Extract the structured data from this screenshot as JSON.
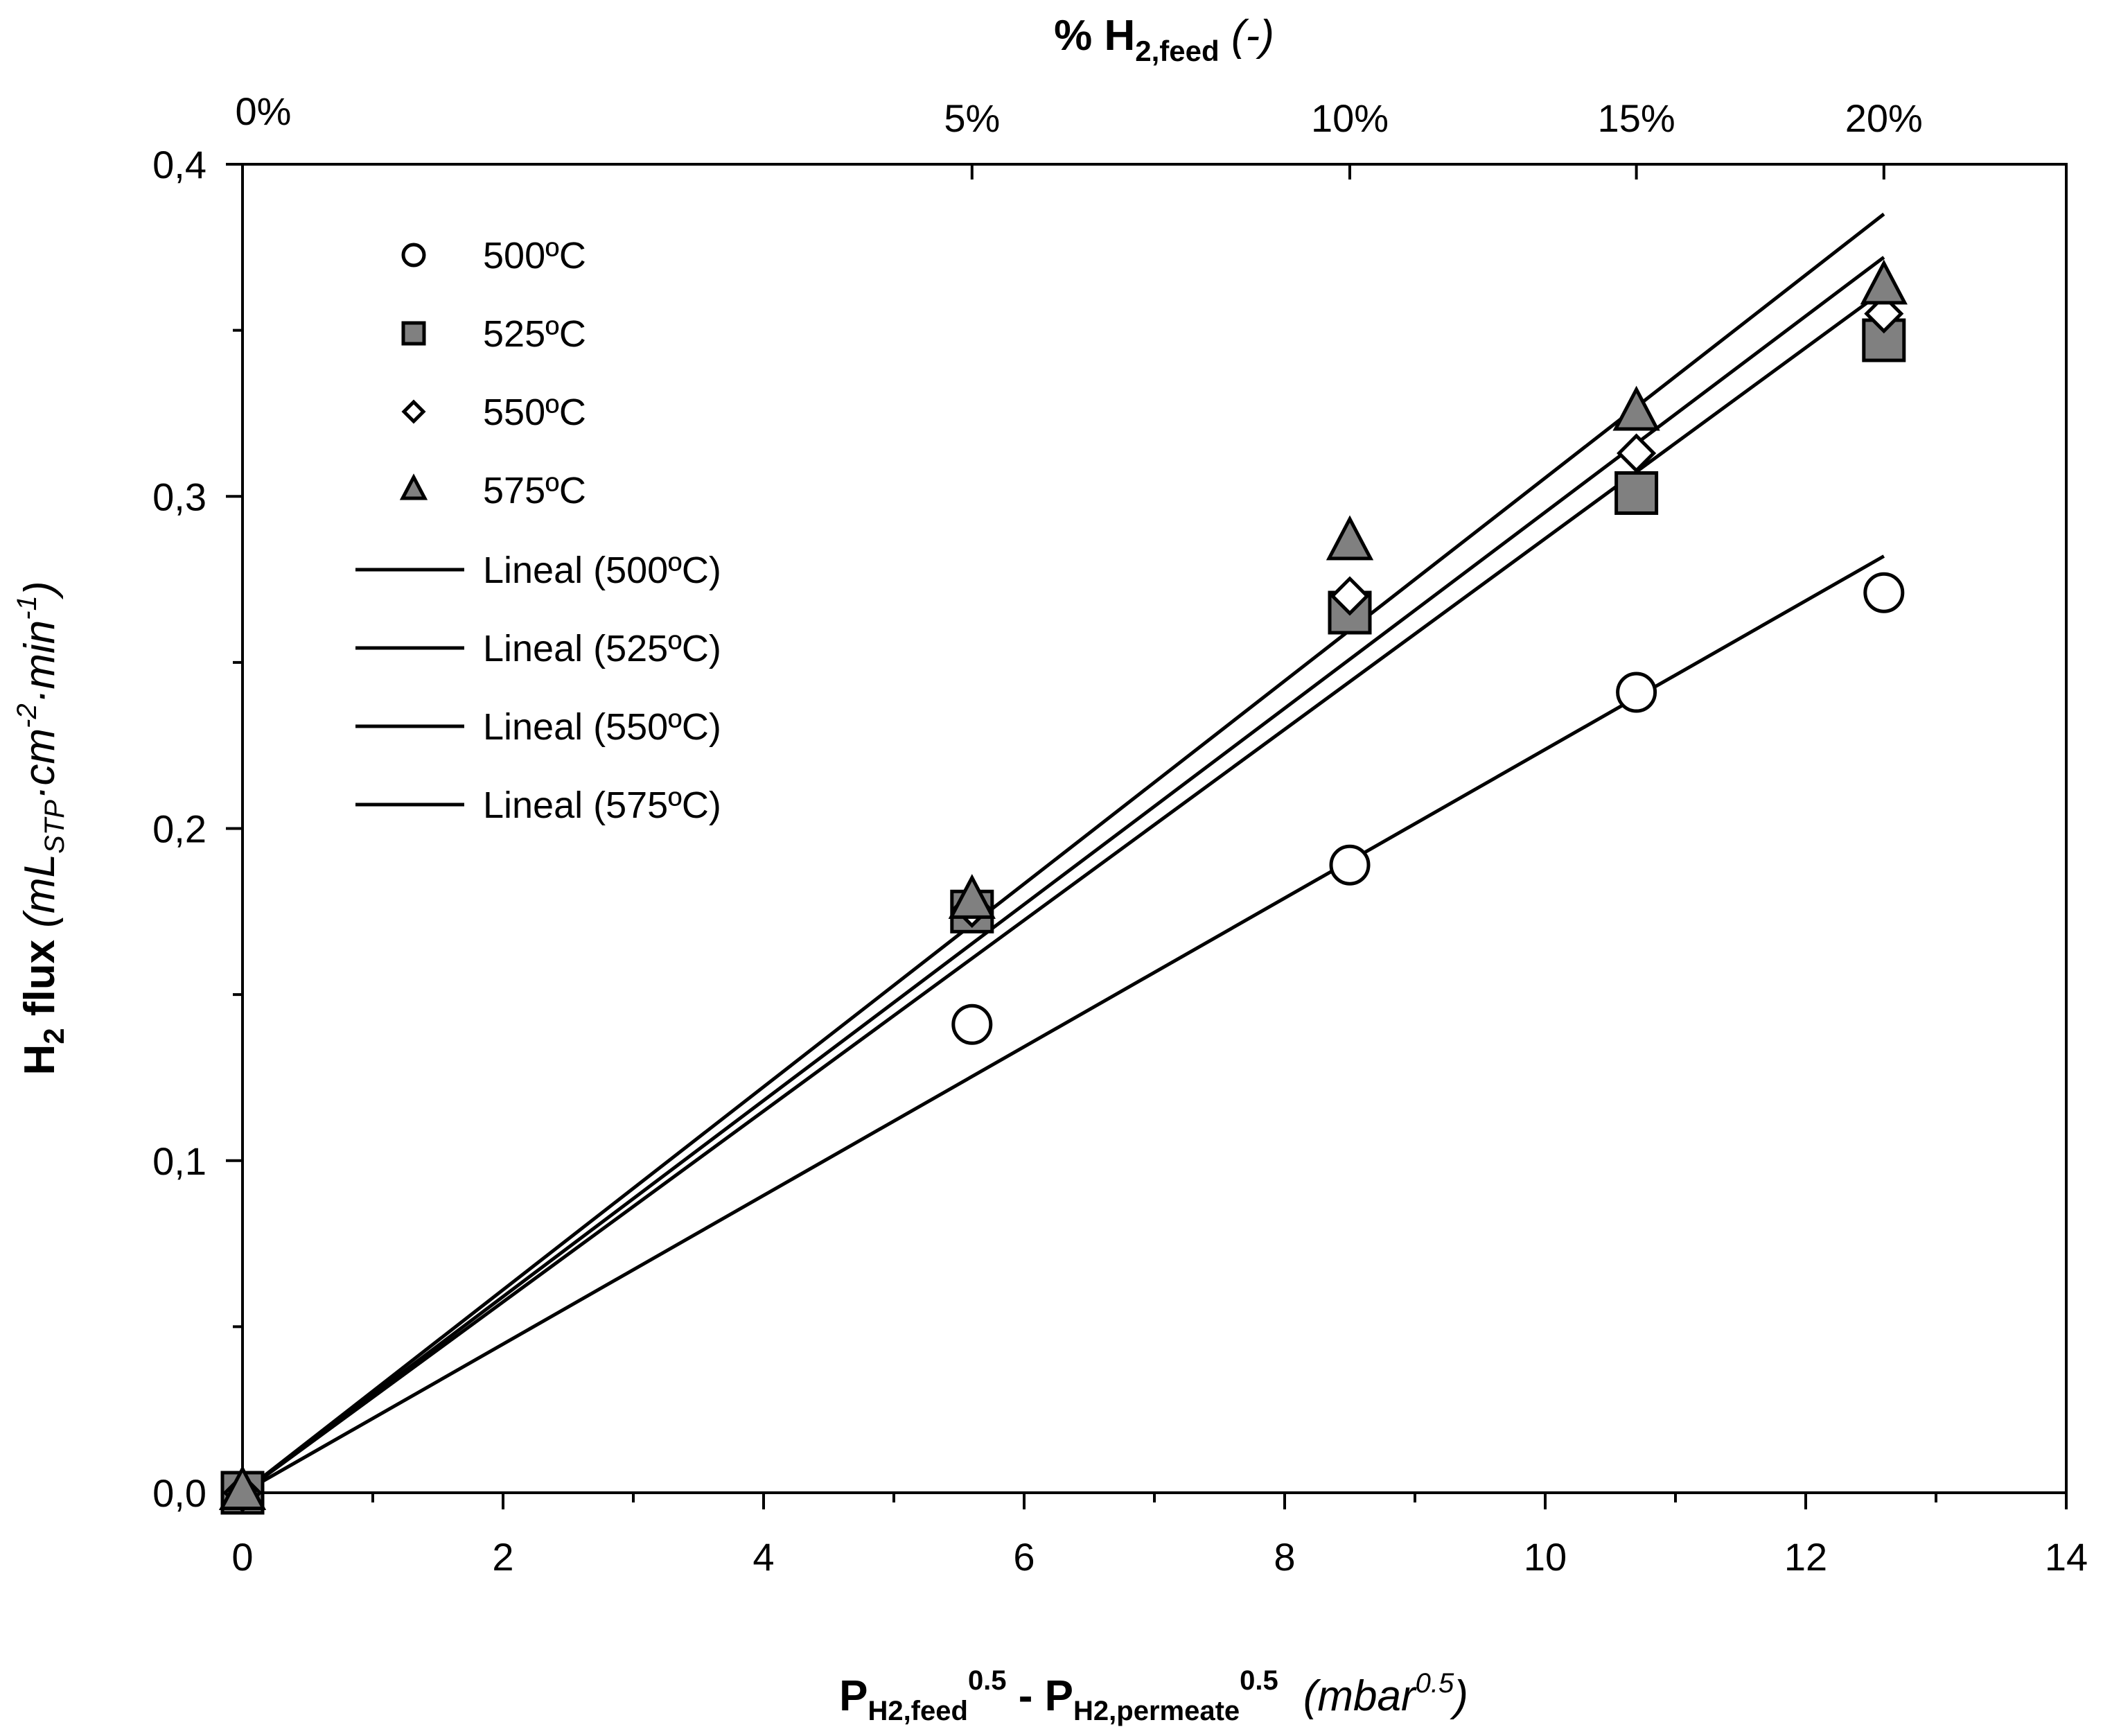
{
  "chart_data": {
    "type": "scatter",
    "title": "",
    "x_axis": {
      "range": [
        0,
        14
      ],
      "ticks": [
        0,
        2,
        4,
        6,
        8,
        10,
        12,
        14
      ],
      "tick_labels": [
        "0",
        "2",
        "4",
        "6",
        "8",
        "10",
        "12",
        "14"
      ],
      "label": {
        "p1": "P",
        "sub1": "H2,feed",
        "sup1": "0.5",
        "minus": " - ",
        "p2": "P",
        "sub2": "H2,permeate",
        "sup2": "0.5",
        "unit_open": "(mbar",
        "unit_sup": "0.5",
        "unit_close": ")"
      }
    },
    "y_axis": {
      "range": [
        0,
        0.4
      ],
      "ticks": [
        0,
        0.1,
        0.2,
        0.3,
        0.4
      ],
      "tick_labels": [
        "0,0",
        "0,1",
        "0,2",
        "0,3",
        "0,4"
      ],
      "label": {
        "h": "H",
        "h_sub": "2",
        "flux": " flux ",
        "unit_a": "(mL",
        "unit_sub": "STP",
        "unit_b": "·cm",
        "unit_sup1": "-2",
        "unit_c": "·min",
        "unit_sup2": "-1",
        "unit_d": ")"
      }
    },
    "top_axis": {
      "label": {
        "pct": "% H",
        "sub": "2,feed",
        "unit": " (-)"
      },
      "ticks": [
        {
          "x": 0,
          "label": "0%"
        },
        {
          "x": 5.6,
          "label": "5%"
        },
        {
          "x": 8.5,
          "label": "10%"
        },
        {
          "x": 10.7,
          "label": "15%"
        },
        {
          "x": 12.6,
          "label": "20%"
        }
      ]
    },
    "series": [
      {
        "name": "500ºC",
        "marker": "circle",
        "fill": "#ffffff",
        "points": [
          [
            0,
            0
          ],
          [
            5.6,
            0.141
          ],
          [
            8.5,
            0.189
          ],
          [
            10.7,
            0.241
          ],
          [
            12.6,
            0.271
          ]
        ]
      },
      {
        "name": "525ºC",
        "marker": "square",
        "fill": "#808080",
        "points": [
          [
            0,
            0
          ],
          [
            5.6,
            0.175
          ],
          [
            8.5,
            0.265
          ],
          [
            10.7,
            0.301
          ],
          [
            12.6,
            0.347
          ]
        ]
      },
      {
        "name": "550ºC",
        "marker": "diamond",
        "fill": "#ffffff",
        "points": [
          [
            0,
            0
          ],
          [
            5.6,
            0.176
          ],
          [
            8.5,
            0.27
          ],
          [
            10.7,
            0.313
          ],
          [
            12.6,
            0.355
          ]
        ]
      },
      {
        "name": "575ºC",
        "marker": "triangle",
        "fill": "#808080",
        "points": [
          [
            0,
            0
          ],
          [
            5.6,
            0.178
          ],
          [
            8.5,
            0.286
          ],
          [
            10.7,
            0.325
          ],
          [
            12.6,
            0.363
          ]
        ]
      }
    ],
    "trendlines": [
      {
        "name": "Lineal (500ºC)",
        "from": [
          0,
          0
        ],
        "to": [
          12.6,
          0.282
        ]
      },
      {
        "name": "Lineal (525ºC)",
        "from": [
          0,
          0
        ],
        "to": [
          12.6,
          0.362
        ]
      },
      {
        "name": "Lineal (550ºC)",
        "from": [
          0,
          0
        ],
        "to": [
          12.6,
          0.372
        ]
      },
      {
        "name": "Lineal (575ºC)",
        "from": [
          0,
          0
        ],
        "to": [
          12.6,
          0.385
        ]
      }
    ],
    "legend_position": "top-left"
  }
}
